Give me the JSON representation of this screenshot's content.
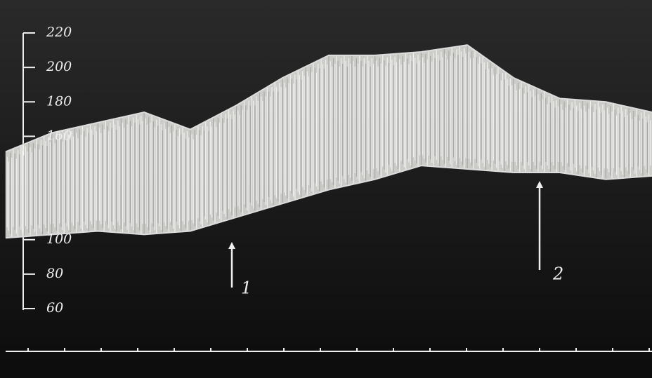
{
  "chart_data": {
    "type": "band",
    "categories": [
      null,
      null,
      null,
      null,
      null,
      null,
      null,
      null,
      null,
      null,
      null,
      null,
      null,
      null,
      null
    ],
    "high": [
      151,
      162,
      168,
      174,
      164,
      178,
      194,
      207,
      207,
      209,
      213,
      194,
      182,
      180,
      174
    ],
    "low": [
      101,
      103,
      105,
      103,
      105,
      113,
      121,
      129,
      135,
      143,
      141,
      139,
      139,
      135,
      137
    ],
    "color": "#f2f2ee",
    "ylim": [
      60,
      220
    ],
    "yticks": [
      60,
      80,
      100,
      160,
      180,
      200,
      220
    ],
    "annotations": [
      "1",
      "2"
    ]
  }
}
